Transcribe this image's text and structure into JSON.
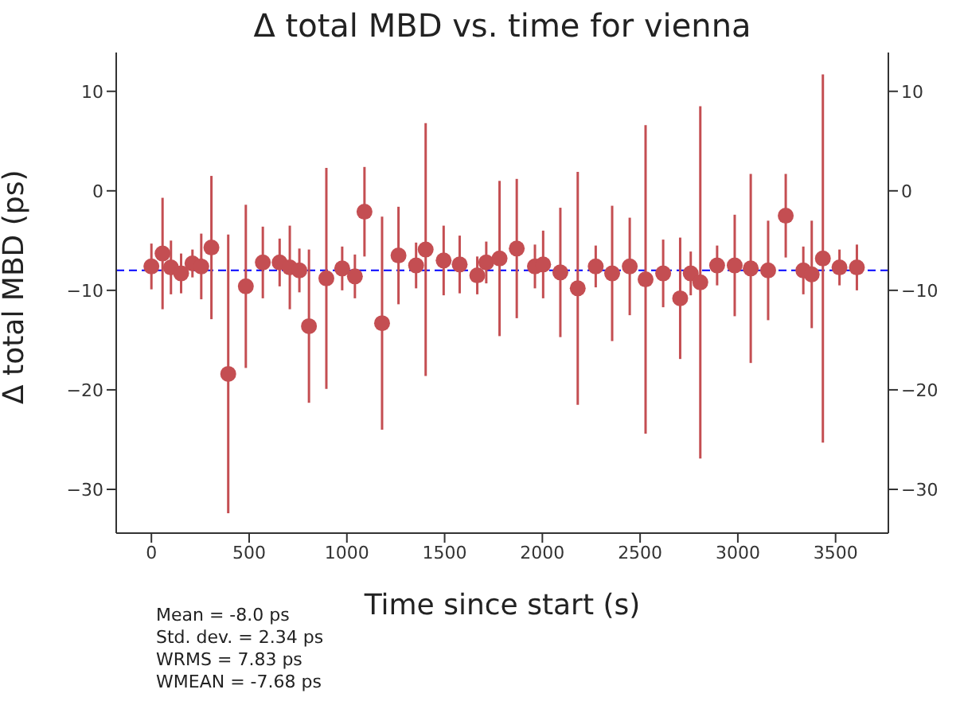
{
  "chart_data": {
    "type": "scatter",
    "title": "Δ total MBD vs. time for vienna",
    "xlabel": "Time since start (s)",
    "ylabel": "Δ total MBD (ps)",
    "x": [
      0,
      57,
      100,
      152,
      210,
      255,
      307,
      393,
      483,
      570,
      656,
      708,
      757,
      806,
      895,
      976,
      1041,
      1090,
      1180,
      1264,
      1354,
      1403,
      1495,
      1577,
      1667,
      1713,
      1781,
      1869,
      1962,
      2004,
      2092,
      2181,
      2273,
      2357,
      2447,
      2528,
      2618,
      2705,
      2759,
      2808,
      2894,
      2984,
      3066,
      3155,
      3245,
      3335,
      3378,
      3435,
      3520,
      3609
    ],
    "series": [
      {
        "color": "#c44e52",
        "values": [
          -7.6,
          -6.3,
          -7.7,
          -8.3,
          -7.3,
          -7.6,
          -5.7,
          -18.4,
          -9.6,
          -7.2,
          -7.2,
          -7.7,
          -8.0,
          -13.6,
          -8.8,
          -7.8,
          -8.6,
          -2.1,
          -13.3,
          -6.5,
          -7.5,
          -5.9,
          -7.0,
          -7.4,
          -8.5,
          -7.2,
          -6.8,
          -5.8,
          -7.6,
          -7.4,
          -8.2,
          -9.8,
          -7.6,
          -8.3,
          -7.6,
          -8.9,
          -8.3,
          -10.8,
          -8.3,
          -9.2,
          -7.5,
          -7.5,
          -7.8,
          -8.0,
          -2.5,
          -8.0,
          -8.4,
          -6.8,
          -7.7,
          -7.7
        ],
        "errors": [
          2.3,
          5.6,
          2.7,
          2.0,
          1.4,
          3.3,
          7.2,
          14.0,
          8.2,
          3.6,
          2.4,
          4.2,
          2.2,
          7.7,
          11.1,
          2.2,
          2.2,
          4.5,
          10.7,
          4.9,
          2.3,
          12.7,
          3.5,
          2.9,
          1.9,
          2.1,
          7.8,
          7.0,
          2.2,
          3.4,
          6.5,
          11.7,
          2.1,
          6.8,
          4.9,
          15.5,
          3.4,
          6.1,
          2.2,
          17.7,
          2.0,
          5.1,
          9.5,
          5.0,
          4.2,
          2.4,
          5.4,
          18.5,
          1.8,
          2.3
        ]
      }
    ],
    "marker": "circle",
    "xlim": [
      -180,
      3770
    ],
    "xticks": [
      0,
      500,
      1000,
      1500,
      2000,
      2500,
      3000,
      3500
    ],
    "ylim": [
      -34.4,
      13.9
    ],
    "yticks": [
      -30,
      -20,
      -10,
      0,
      10
    ],
    "y2lim": [
      -34.4,
      13.9
    ],
    "y2ticks": [
      -30,
      -20,
      -10,
      0,
      10
    ],
    "ref_lines": [
      {
        "axis": "y",
        "value": -8.0,
        "color": "#0000ff",
        "line_style": "dashed"
      }
    ],
    "grid": false,
    "annotations": [
      "Mean = -8.0 ps",
      "Std. dev. = 2.34 ps",
      "WRMS = 7.83 ps",
      "WMEAN = -7.68 ps"
    ]
  }
}
